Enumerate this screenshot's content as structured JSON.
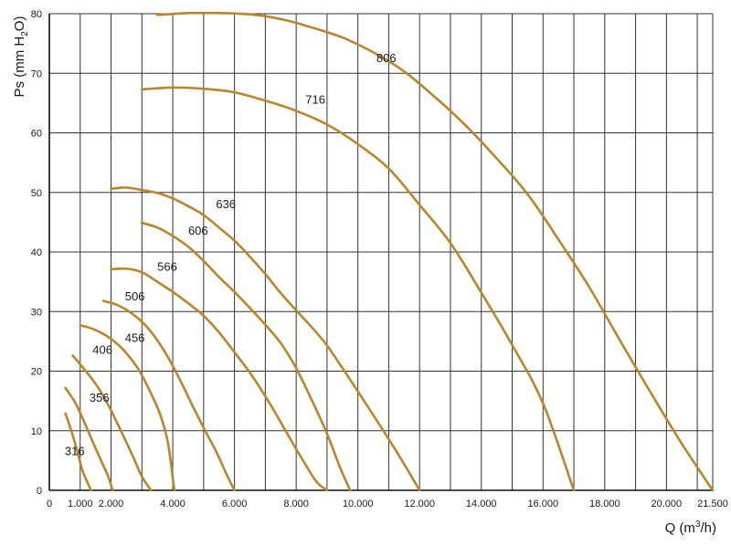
{
  "chart_data": {
    "type": "line",
    "xlabel_base": "Q (m",
    "xlabel_sup": "3",
    "xlabel_end": "/h)",
    "ylabel_base": "Ps (mm H",
    "ylabel_sub": "2",
    "ylabel_end": "O)",
    "xlim": [
      0,
      21500
    ],
    "ylim": [
      0,
      80
    ],
    "grid": true,
    "x_ticks": [
      {
        "value": 0,
        "label": "0"
      },
      {
        "value": 1000,
        "label": "1.000"
      },
      {
        "value": 2000,
        "label": "2.000"
      },
      {
        "value": 4000,
        "label": "4.000"
      },
      {
        "value": 6000,
        "label": "6.000"
      },
      {
        "value": 8000,
        "label": "8.000"
      },
      {
        "value": 10000,
        "label": "10.000"
      },
      {
        "value": 12000,
        "label": "12.000"
      },
      {
        "value": 14000,
        "label": "14.000"
      },
      {
        "value": 16000,
        "label": "16.000"
      },
      {
        "value": 18000,
        "label": "18.000"
      },
      {
        "value": 20000,
        "label": "20.000"
      },
      {
        "value": 21500,
        "label": "21.500"
      }
    ],
    "y_ticks": [
      {
        "value": 0,
        "label": "0"
      },
      {
        "value": 10,
        "label": "10"
      },
      {
        "value": 20,
        "label": "20"
      },
      {
        "value": 30,
        "label": "30"
      },
      {
        "value": 40,
        "label": "40"
      },
      {
        "value": 50,
        "label": "50"
      },
      {
        "value": 60,
        "label": "60"
      },
      {
        "value": 70,
        "label": "70"
      },
      {
        "value": 80,
        "label": "80"
      }
    ],
    "series_color": "#b8862b",
    "series": [
      {
        "name": "316",
        "label_at": [
          500,
          6.5
        ],
        "points": [
          [
            520,
            12.9
          ],
          [
            750,
            9.4
          ],
          [
            930,
            6.1
          ],
          [
            1080,
            3.2
          ],
          [
            1350,
            0
          ]
        ]
      },
      {
        "name": "356",
        "label_at": [
          1300,
          15.5
        ],
        "points": [
          [
            520,
            17.2
          ],
          [
            850,
            14.6
          ],
          [
            1120,
            11.6
          ],
          [
            1400,
            8.2
          ],
          [
            1650,
            5.3
          ],
          [
            1900,
            2.4
          ],
          [
            2050,
            0
          ]
        ]
      },
      {
        "name": "406",
        "label_at": [
          1400,
          23.5
        ],
        "points": [
          [
            760,
            22.6
          ],
          [
            1150,
            20.2
          ],
          [
            1550,
            17.5
          ],
          [
            1900,
            14.4
          ],
          [
            2300,
            10.2
          ],
          [
            2700,
            5.8
          ],
          [
            3000,
            2.3
          ],
          [
            3300,
            0
          ]
        ]
      },
      {
        "name": "456",
        "label_at": [
          2450,
          25.5
        ],
        "points": [
          [
            1000,
            27.7
          ],
          [
            1450,
            27.0
          ],
          [
            1950,
            25.6
          ],
          [
            2450,
            23.3
          ],
          [
            2900,
            20.2
          ],
          [
            3300,
            16.2
          ],
          [
            3600,
            12.6
          ],
          [
            3850,
            7.8
          ],
          [
            4050,
            0
          ]
        ]
      },
      {
        "name": "506",
        "label_at": [
          2450,
          32.5
        ],
        "points": [
          [
            1750,
            31.8
          ],
          [
            2200,
            31.1
          ],
          [
            2700,
            29.6
          ],
          [
            3200,
            27.2
          ],
          [
            3700,
            23.6
          ],
          [
            4150,
            19.4
          ],
          [
            4650,
            14.1
          ],
          [
            5050,
            10.0
          ],
          [
            5400,
            6.6
          ],
          [
            5750,
            2.6
          ],
          [
            6000,
            0
          ]
        ]
      },
      {
        "name": "566",
        "label_at": [
          3500,
          37.5
        ],
        "points": [
          [
            2000,
            37.1
          ],
          [
            2500,
            37.2
          ],
          [
            3000,
            36.6
          ],
          [
            3500,
            35.0
          ],
          [
            4000,
            33.3
          ],
          [
            4500,
            31.4
          ],
          [
            5000,
            29.3
          ],
          [
            5500,
            26.5
          ],
          [
            6100,
            22.5
          ],
          [
            6600,
            19.0
          ],
          [
            7200,
            14.1
          ],
          [
            7700,
            9.6
          ],
          [
            8200,
            5.2
          ],
          [
            8650,
            1.5
          ],
          [
            9000,
            0
          ]
        ]
      },
      {
        "name": "606",
        "label_at": [
          4500,
          43.5
        ],
        "points": [
          [
            3000,
            44.9
          ],
          [
            3500,
            44.1
          ],
          [
            4000,
            42.7
          ],
          [
            4500,
            40.9
          ],
          [
            5000,
            38.5
          ],
          [
            5500,
            35.8
          ],
          [
            6000,
            33.3
          ],
          [
            6500,
            30.6
          ],
          [
            7000,
            27.8
          ],
          [
            7500,
            24.7
          ],
          [
            8000,
            20.5
          ],
          [
            8500,
            15.2
          ],
          [
            9000,
            9.5
          ],
          [
            9400,
            4.1
          ],
          [
            9750,
            0
          ]
        ]
      },
      {
        "name": "636",
        "label_at": [
          5400,
          48.0
        ],
        "points": [
          [
            2000,
            50.6
          ],
          [
            2500,
            50.8
          ],
          [
            3000,
            50.4
          ],
          [
            3500,
            49.9
          ],
          [
            4000,
            49.0
          ],
          [
            4500,
            47.7
          ],
          [
            5000,
            46.2
          ],
          [
            5500,
            44.1
          ],
          [
            6000,
            41.9
          ],
          [
            6500,
            39.2
          ],
          [
            7000,
            36.3
          ],
          [
            7500,
            33.1
          ],
          [
            8000,
            30.2
          ],
          [
            8500,
            27.4
          ],
          [
            9000,
            24.3
          ],
          [
            9500,
            20.5
          ],
          [
            10000,
            16.6
          ],
          [
            10500,
            12.6
          ],
          [
            11000,
            8.6
          ],
          [
            11500,
            4.4
          ],
          [
            12000,
            0
          ]
        ]
      },
      {
        "name": "716",
        "label_at": [
          8300,
          65.5
        ],
        "points": [
          [
            3000,
            67.3
          ],
          [
            4000,
            67.6
          ],
          [
            5000,
            67.4
          ],
          [
            6000,
            66.8
          ],
          [
            7000,
            65.4
          ],
          [
            8000,
            63.7
          ],
          [
            9000,
            61.4
          ],
          [
            10000,
            58.1
          ],
          [
            11000,
            54.0
          ],
          [
            12000,
            47.9
          ],
          [
            13000,
            41.5
          ],
          [
            14000,
            33.2
          ],
          [
            15000,
            24.4
          ],
          [
            16000,
            14.6
          ],
          [
            17000,
            0
          ]
        ]
      },
      {
        "name": "806",
        "label_at": [
          10600,
          72.5
        ],
        "points": [
          [
            3500,
            79.8
          ],
          [
            4500,
            80.1
          ],
          [
            5500,
            80.1
          ],
          [
            6500,
            79.9
          ],
          [
            7500,
            79.1
          ],
          [
            8500,
            77.7
          ],
          [
            9500,
            76.0
          ],
          [
            10500,
            73.5
          ],
          [
            11500,
            70.3
          ],
          [
            12500,
            66.0
          ],
          [
            13500,
            61.2
          ],
          [
            14500,
            55.7
          ],
          [
            15500,
            49.7
          ],
          [
            16500,
            42.1
          ],
          [
            17500,
            34.1
          ],
          [
            18500,
            25.1
          ],
          [
            19500,
            16.3
          ],
          [
            20500,
            7.8
          ],
          [
            21500,
            0
          ]
        ]
      }
    ]
  }
}
